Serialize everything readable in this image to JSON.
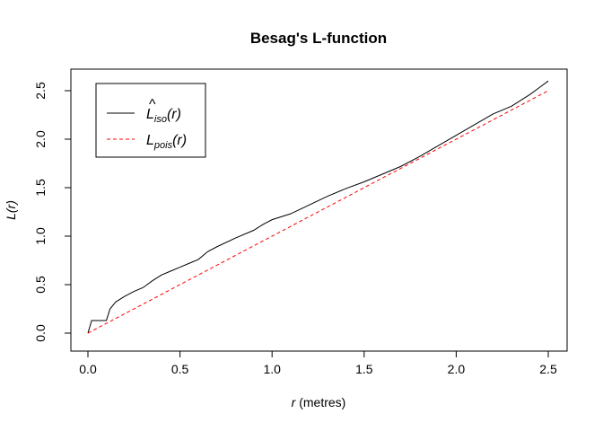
{
  "chart_data": {
    "type": "line",
    "title": "Besag's L-function",
    "xlabel_var": "r",
    "xlabel_unit": " (metres)",
    "ylabel": "L(r)",
    "xlim": [
      0,
      2.5
    ],
    "ylim": [
      0,
      2.6
    ],
    "x_ticks": [
      0.0,
      0.5,
      1.0,
      1.5,
      2.0,
      2.5
    ],
    "x_tick_labels": [
      "0.0",
      "0.5",
      "1.0",
      "1.5",
      "2.0",
      "2.5"
    ],
    "y_ticks": [
      0.0,
      0.5,
      1.0,
      1.5,
      2.0,
      2.5
    ],
    "y_tick_labels": [
      "0.0",
      "0.5",
      "1.0",
      "1.5",
      "2.0",
      "2.5"
    ],
    "grid": false,
    "legend_position": "top-left",
    "series": [
      {
        "name": "L̂iso(r)",
        "legend_main": "L",
        "legend_hat": "^",
        "legend_sub": "iso",
        "legend_tail": "(r)",
        "color": "#000000",
        "style": "solid",
        "x": [
          0,
          0.02,
          0.1,
          0.12,
          0.15,
          0.2,
          0.25,
          0.3,
          0.35,
          0.4,
          0.45,
          0.5,
          0.55,
          0.6,
          0.65,
          0.7,
          0.8,
          0.9,
          0.95,
          1.0,
          1.1,
          1.2,
          1.3,
          1.4,
          1.5,
          1.6,
          1.7,
          1.8,
          1.9,
          2.0,
          2.1,
          2.2,
          2.3,
          2.4,
          2.45,
          2.5
        ],
        "y": [
          0.0,
          0.13,
          0.13,
          0.25,
          0.32,
          0.38,
          0.43,
          0.47,
          0.54,
          0.6,
          0.64,
          0.68,
          0.72,
          0.76,
          0.84,
          0.89,
          0.98,
          1.06,
          1.12,
          1.17,
          1.23,
          1.32,
          1.41,
          1.49,
          1.56,
          1.64,
          1.72,
          1.82,
          1.93,
          2.04,
          2.15,
          2.26,
          2.34,
          2.46,
          2.53,
          2.6
        ]
      },
      {
        "name": "Lpois(r)",
        "legend_main": "L",
        "legend_hat": "",
        "legend_sub": "pois",
        "legend_tail": "(r)",
        "color": "#ff0000",
        "style": "dashed",
        "x": [
          0,
          2.5
        ],
        "y": [
          0,
          2.5
        ]
      }
    ]
  }
}
